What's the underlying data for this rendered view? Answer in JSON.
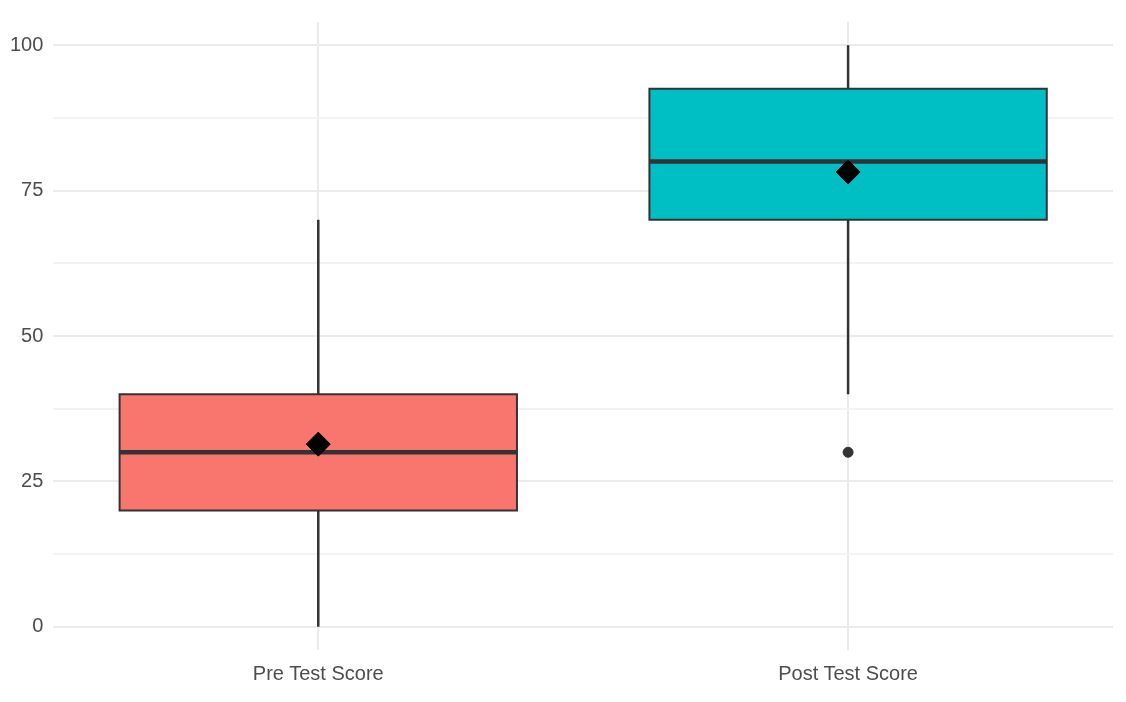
{
  "chart_data": {
    "type": "box",
    "categories": [
      "Pre Test Score",
      "Post Test Score"
    ],
    "colors": [
      "#f8766d",
      "#00bfc4"
    ],
    "boxes": [
      {
        "low": 0,
        "q1": 20,
        "median": 30,
        "q3": 40,
        "high": 70,
        "mean": 31.4
      },
      {
        "low": 40,
        "q1": 70,
        "median": 80,
        "q3": 92.5,
        "high": 100,
        "mean": 78.2,
        "outliers": [
          30
        ]
      }
    ],
    "ylim": [
      -4,
      104
    ],
    "yticks": [
      0,
      {
        "value": 12.5,
        "label": null
      },
      25,
      {
        "value": 37.5,
        "label": null
      },
      50,
      {
        "value": 62.5,
        "label": null
      },
      75,
      {
        "value": 87.5,
        "label": null
      },
      100
    ],
    "grid": true,
    "legend": false
  }
}
